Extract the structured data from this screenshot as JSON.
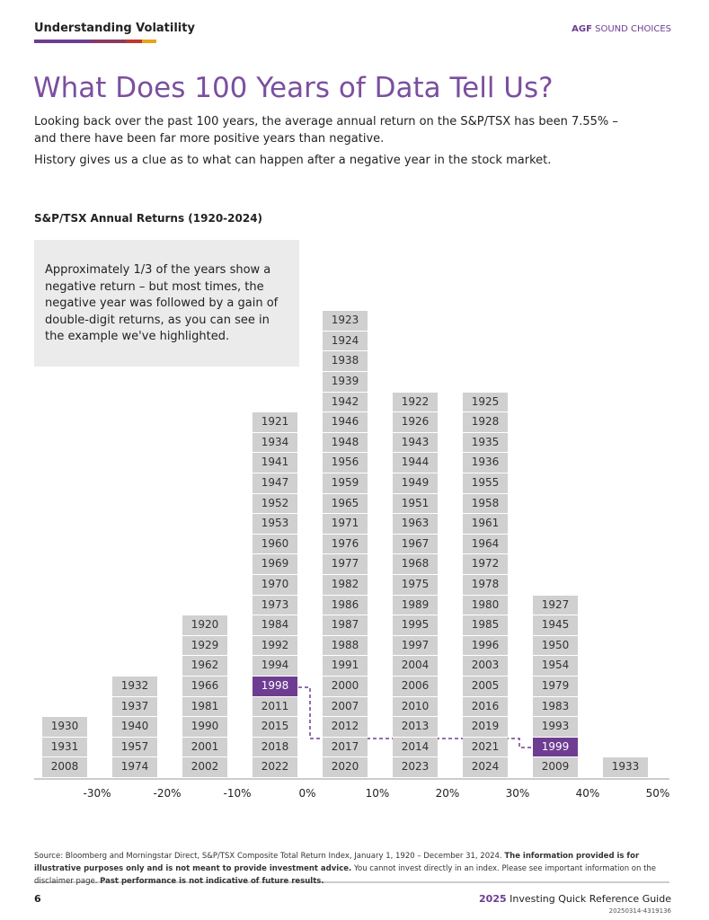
{
  "header": {
    "section": "Understanding Volatility",
    "brand_bold": "AGF",
    "brand": "SOUND CHOICES"
  },
  "title": "What Does 100 Years of Data Tell Us?",
  "paragraphs": [
    "Looking back over the past 100 years, the average annual return on the S&P/TSX has been 7.55% – and there have been far more positive years than negative.",
    "History gives us a clue as to what can happen after a negative year in the stock market."
  ],
  "chart": {
    "title": "S&P/TSX Annual Returns (1920-2024)",
    "note": "Approximately 1/3 of the years show a negative return – but most times, the negative year was followed by a gain of double-digit returns, as you can see in the example we've highlighted.",
    "bar_color": "#d0d0d0",
    "highlight_color": "#6e3d92",
    "ticks": [
      "-30%",
      "-20%",
      "-10%",
      "0%",
      "10%",
      "20%",
      "30%",
      "40%",
      "50%"
    ],
    "columns": [
      {
        "years": [
          "1930",
          "1931",
          "2008"
        ]
      },
      {
        "years": [
          "1932",
          "1937",
          "1940",
          "1957",
          "1974"
        ]
      },
      {
        "years": [
          "1920",
          "1929",
          "1962",
          "1966",
          "1981",
          "1990",
          "2001",
          "2002"
        ]
      },
      {
        "years": [
          "1921",
          "1934",
          "1941",
          "1947",
          "1952",
          "1953",
          "1960",
          "1969",
          "1970",
          "1973",
          "1984",
          "1992",
          "1994",
          "1998",
          "2011",
          "2015",
          "2018",
          "2022"
        ],
        "highlighted": 13
      },
      {
        "years": [
          "1923",
          "1924",
          "1938",
          "1939",
          "1942",
          "1946",
          "1948",
          "1956",
          "1959",
          "1965",
          "1971",
          "1976",
          "1977",
          "1982",
          "1986",
          "1987",
          "1988",
          "1991",
          "2000",
          "2007",
          "2012",
          "2017",
          "2020"
        ]
      },
      {
        "years": [
          "1922",
          "1926",
          "1943",
          "1944",
          "1949",
          "1951",
          "1963",
          "1967",
          "1968",
          "1975",
          "1989",
          "1995",
          "1997",
          "2004",
          "2006",
          "2010",
          "2013",
          "2014",
          "2023"
        ]
      },
      {
        "years": [
          "1925",
          "1928",
          "1935",
          "1936",
          "1955",
          "1958",
          "1961",
          "1964",
          "1972",
          "1978",
          "1980",
          "1985",
          "1996",
          "2003",
          "2005",
          "2016",
          "2019",
          "2021",
          "2024"
        ]
      },
      {
        "years": [
          "1927",
          "1945",
          "1950",
          "1954",
          "1979",
          "1983",
          "1993",
          "1999",
          "2009"
        ],
        "highlighted": 7
      },
      {
        "years": [
          "1933"
        ]
      }
    ]
  },
  "footer": {
    "source": "Source: Bloomberg and Morningstar Direct, S&P/TSX Composite Total Return Index, January 1, 1920 – December 31, 2024.",
    "disclaimer_bold": "The information provided is for illustrative purposes only and is not meant to provide investment advice.",
    "disclaimer": "You cannot invest directly in an index. Please see important information on the disclaimer page.",
    "performance_bold": "Past performance is not indicative of future results.",
    "page": "6",
    "guide_year": "2025",
    "guide": "Investing Quick Reference Guide",
    "code": "20250314-4319136"
  }
}
